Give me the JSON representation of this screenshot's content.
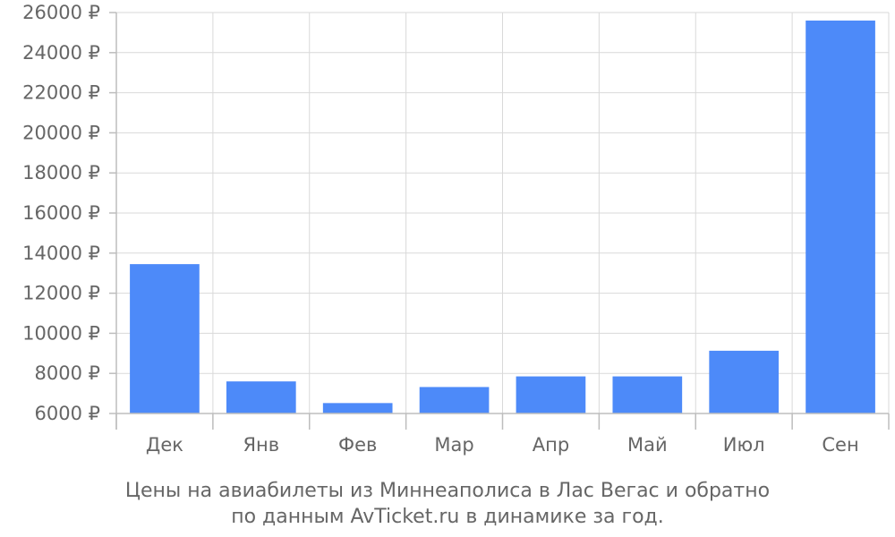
{
  "chart_data": {
    "type": "bar",
    "title": "",
    "xlabel": "",
    "ylabel": "",
    "categories": [
      "Дек",
      "Янв",
      "Фев",
      "Мар",
      "Апр",
      "Май",
      "Июл",
      "Сен"
    ],
    "values": [
      13450,
      7600,
      6520,
      7320,
      7850,
      7850,
      9130,
      25600
    ],
    "ylim": [
      6000,
      26000
    ],
    "yticks": [
      6000,
      8000,
      10000,
      12000,
      14000,
      16000,
      18000,
      20000,
      22000,
      24000,
      26000
    ],
    "ytick_suffix": " ₽",
    "grid": true,
    "bar_color": "#4d8af9",
    "caption": [
      "Цены на авиабилеты из Миннеаполиса в Лас Вегас и обратно",
      "по данным AvTicket.ru в динамике за год."
    ]
  }
}
